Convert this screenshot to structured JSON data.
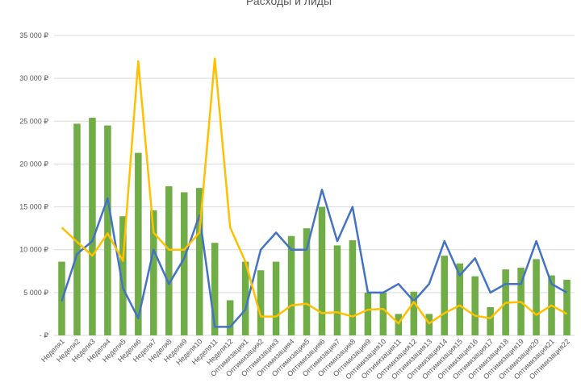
{
  "chart_data": {
    "type": "bar",
    "title": "Расходы и лиды",
    "xlabel": "",
    "ylabel": "",
    "ylim": [
      0,
      35000
    ],
    "y_ticks": [
      "-  ₽",
      "5 000 ₽",
      "10 000 ₽",
      "15 000 ₽",
      "20 000 ₽",
      "25 000 ₽",
      "30 000 ₽",
      "35 000 ₽"
    ],
    "y_tick_values": [
      0,
      5000,
      10000,
      15000,
      20000,
      25000,
      30000,
      35000
    ],
    "grid": true,
    "legend": "none",
    "categories": [
      "Неделя1",
      "Неделя2",
      "Неделя3",
      "Неделя4",
      "Неделя5",
      "Неделя6",
      "Неделя7",
      "Неделя8",
      "Неделя9",
      "Неделя10",
      "Неделя11",
      "Неделя12",
      "Оптимизация1",
      "Оптимизация2",
      "Оптимизация3",
      "Оптимизация4",
      "Оптимизация5",
      "Оптимизация6",
      "Оптимизация7",
      "Оптимизация8",
      "Оптимизация9",
      "Оптимизация10",
      "Оптимизация11",
      "Оптимизация12",
      "Оптимизация13",
      "Оптимизация14",
      "Оптимизация15",
      "Оптимизация16",
      "Оптимизация17",
      "Оптимизация18",
      "Оптимизация19",
      "Оптимизация20",
      "Оптимизация21",
      "Оптимизация22"
    ],
    "series": [
      {
        "type": "bar",
        "color": "#70ad47",
        "values": [
          8600,
          24700,
          25400,
          24500,
          13900,
          21300,
          14600,
          17400,
          16700,
          17200,
          10800,
          4100,
          8600,
          7600,
          8600,
          11600,
          12500,
          15000,
          10500,
          11100,
          5000,
          5000,
          2500,
          5100,
          2500,
          9300,
          8400,
          6900,
          3300,
          7700,
          7900,
          8900,
          7000,
          6500
        ]
      },
      {
        "type": "line",
        "color": "#4472c4",
        "values": [
          4000,
          9500,
          11000,
          16000,
          5500,
          2000,
          10000,
          6000,
          9000,
          14000,
          1000,
          1000,
          3000,
          10000,
          12000,
          10000,
          10000,
          17000,
          11000,
          15000,
          5000,
          5000,
          6000,
          4000,
          6000,
          11000,
          7000,
          9000,
          5000,
          6000,
          6000,
          11000,
          6000,
          5000
        ]
      },
      {
        "type": "line",
        "color": "#ffc000",
        "values": [
          12600,
          10900,
          9300,
          11900,
          8700,
          32000,
          12000,
          10000,
          10000,
          12000,
          32300,
          12600,
          8600,
          2200,
          2200,
          3500,
          3700,
          2600,
          2700,
          2200,
          3000,
          3100,
          1400,
          3900,
          1400,
          2600,
          3500,
          2300,
          2000,
          3800,
          3900,
          2400,
          3500,
          2500
        ]
      }
    ]
  }
}
